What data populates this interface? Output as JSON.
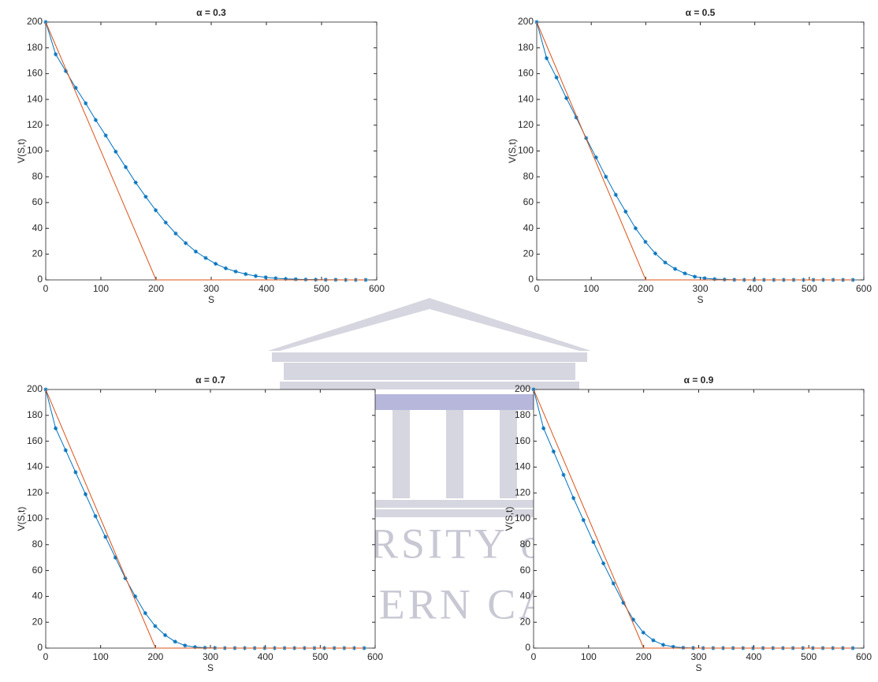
{
  "watermark": {
    "line1": "UNIVERSITY of the",
    "line2": "WESTERN CAPE"
  },
  "chart_data": [
    {
      "type": "line",
      "title": "α = 0.3",
      "x_label": "S",
      "y_label": "V(S,t)",
      "xlim": [
        0,
        600
      ],
      "ylim": [
        0,
        200
      ],
      "xticks": [
        0,
        100,
        200,
        300,
        400,
        500,
        600
      ],
      "yticks": [
        0,
        20,
        40,
        60,
        80,
        100,
        120,
        140,
        160,
        180,
        200
      ],
      "series": [
        {
          "color": "#0072bd",
          "marker": "star",
          "x": [
            0,
            18.1,
            36.3,
            54.4,
            72.5,
            90.6,
            108.8,
            126.9,
            145,
            163.1,
            181.3,
            199.4,
            217.5,
            235.6,
            253.8,
            271.9,
            290,
            308.1,
            326.3,
            344.4,
            362.5,
            380.6,
            398.8,
            416.9,
            435,
            453.1,
            471.3,
            489.4,
            507.5,
            525.6,
            543.8,
            561.9,
            580
          ],
          "values": [
            200,
            175,
            162,
            149,
            137,
            124,
            112,
            99.5,
            87.5,
            75.5,
            64.5,
            54,
            44.5,
            36,
            28.5,
            22,
            17,
            12.5,
            9,
            6.5,
            4.5,
            3,
            2,
            1.3,
            0.8,
            0.5,
            0.3,
            0.2,
            0.1,
            0.1,
            0,
            0,
            0
          ]
        },
        {
          "color": "#d95319",
          "marker": "none",
          "x": [
            0,
            200,
            580
          ],
          "values": [
            200,
            0,
            0
          ]
        }
      ]
    },
    {
      "type": "line",
      "title": "α = 0.5",
      "x_label": "S",
      "y_label": "V(S,t)",
      "xlim": [
        0,
        600
      ],
      "ylim": [
        0,
        200
      ],
      "xticks": [
        0,
        100,
        200,
        300,
        400,
        500,
        600
      ],
      "yticks": [
        0,
        20,
        40,
        60,
        80,
        100,
        120,
        140,
        160,
        180,
        200
      ],
      "series": [
        {
          "color": "#0072bd",
          "marker": "star",
          "x": [
            0,
            18.1,
            36.3,
            54.4,
            72.5,
            90.6,
            108.8,
            126.9,
            145,
            163.1,
            181.3,
            199.4,
            217.5,
            235.6,
            253.8,
            271.9,
            290,
            308.1,
            326.3,
            344.4,
            362.5,
            380.6,
            398.8,
            416.9,
            435,
            453.1,
            471.3,
            489.4,
            507.5,
            525.6,
            543.8,
            561.9,
            580
          ],
          "values": [
            200,
            172,
            157,
            141,
            126,
            110,
            95,
            80,
            66,
            53,
            40,
            29.5,
            20.5,
            13.5,
            8.5,
            5,
            2.5,
            1.3,
            0.6,
            0.3,
            0.1,
            0,
            0,
            0,
            0,
            0,
            0,
            0,
            0,
            0,
            0,
            0,
            0
          ]
        },
        {
          "color": "#d95319",
          "marker": "none",
          "x": [
            0,
            200,
            580
          ],
          "values": [
            200,
            0,
            0
          ]
        }
      ]
    },
    {
      "type": "line",
      "title": "α = 0.7",
      "x_label": "S",
      "y_label": "V(S,t)",
      "xlim": [
        0,
        600
      ],
      "ylim": [
        0,
        200
      ],
      "xticks": [
        0,
        100,
        200,
        300,
        400,
        500,
        600
      ],
      "yticks": [
        0,
        20,
        40,
        60,
        80,
        100,
        120,
        140,
        160,
        180,
        200
      ],
      "series": [
        {
          "color": "#0072bd",
          "marker": "star",
          "x": [
            0,
            18.1,
            36.3,
            54.4,
            72.5,
            90.6,
            108.8,
            126.9,
            145,
            163.1,
            181.3,
            199.4,
            217.5,
            235.6,
            253.8,
            271.9,
            290,
            308.1,
            326.3,
            344.4,
            362.5,
            380.6,
            398.8,
            416.9,
            435,
            453.1,
            471.3,
            489.4,
            507.5,
            525.6,
            543.8,
            561.9,
            580
          ],
          "values": [
            200,
            170,
            153,
            136,
            119,
            102,
            86,
            70,
            54,
            40,
            27,
            17,
            10,
            5,
            2,
            0.8,
            0.3,
            0.1,
            0,
            0,
            0,
            0,
            0,
            0,
            0,
            0,
            0,
            0,
            0,
            0,
            0,
            0,
            0
          ]
        },
        {
          "color": "#d95319",
          "marker": "none",
          "x": [
            0,
            200,
            580
          ],
          "values": [
            200,
            0,
            0
          ]
        }
      ]
    },
    {
      "type": "line",
      "title": "α = 0.9",
      "x_label": "S",
      "y_label": "V(S,t)",
      "xlim": [
        0,
        600
      ],
      "ylim": [
        0,
        200
      ],
      "xticks": [
        0,
        100,
        200,
        300,
        400,
        500,
        600
      ],
      "yticks": [
        0,
        20,
        40,
        60,
        80,
        100,
        120,
        140,
        160,
        180,
        200
      ],
      "series": [
        {
          "color": "#0072bd",
          "marker": "star",
          "x": [
            0,
            18.1,
            36.3,
            54.4,
            72.5,
            90.6,
            108.8,
            126.9,
            145,
            163.1,
            181.3,
            199.4,
            217.5,
            235.6,
            253.8,
            271.9,
            290,
            308.1,
            326.3,
            344.4,
            362.5,
            380.6,
            398.8,
            416.9,
            435,
            453.1,
            471.3,
            489.4,
            507.5,
            525.6,
            543.8,
            561.9,
            580
          ],
          "values": [
            200,
            170,
            152,
            134,
            116,
            99,
            82,
            65.5,
            50,
            35,
            22,
            12,
            6,
            2.5,
            1,
            0.3,
            0.1,
            0,
            0,
            0,
            0,
            0,
            0,
            0,
            0,
            0,
            0,
            0,
            0,
            0,
            0,
            0,
            0
          ]
        },
        {
          "color": "#d95319",
          "marker": "none",
          "x": [
            0,
            200,
            580
          ],
          "values": [
            200,
            0,
            0
          ]
        }
      ]
    }
  ]
}
